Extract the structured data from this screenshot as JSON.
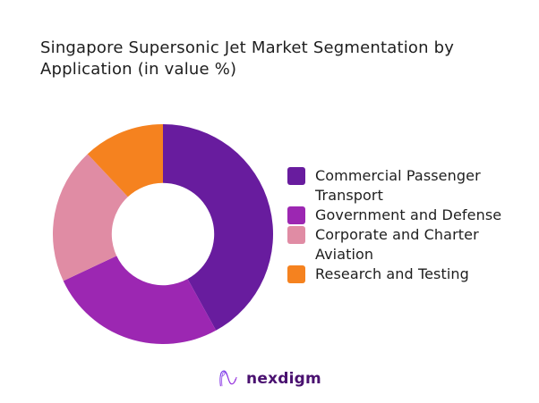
{
  "title": "Singapore Supersonic Jet Market Segmentation by Application (in value %)",
  "chart_data": {
    "type": "pie",
    "subtype": "donut",
    "title": "Singapore Supersonic Jet Market Segmentation by Application (in value %)",
    "categories": [
      "Commercial Passenger Transport",
      "Government and Defense",
      "Corporate and Charter Aviation",
      "Research and Testing"
    ],
    "values": [
      42,
      26,
      20,
      12
    ],
    "unit": "value %",
    "colors": [
      "#681C9E",
      "#9C27B2",
      "#E08CA4",
      "#F5821F"
    ],
    "start_angle_deg": 0,
    "direction": "clockwise",
    "inner_radius_ratio": 0.465,
    "legend_position": "right",
    "data_labels": "none"
  },
  "legend": {
    "items": [
      {
        "label": "Commercial Passenger Transport",
        "color": "#681C9E"
      },
      {
        "label": "Government and Defense",
        "color": "#9C27B2"
      },
      {
        "label": "Corporate and Charter Aviation",
        "color": "#E08CA4"
      },
      {
        "label": "Research and Testing",
        "color": "#F5821F"
      }
    ]
  },
  "brand": {
    "logo_text": "nexdigm",
    "logo_color": "#4A1170",
    "icon": "nexdigm-n-swirl-icon"
  }
}
